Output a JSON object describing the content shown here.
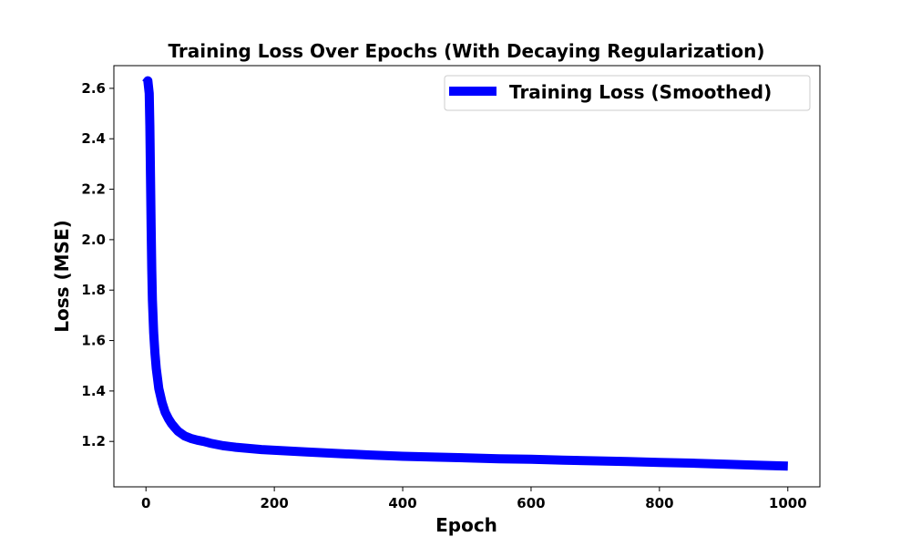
{
  "chart_data": {
    "type": "line",
    "title": "Training Loss Over Epochs (With Decaying Regularization)",
    "xlabel": "Epoch",
    "ylabel": "Loss (MSE)",
    "xlim": [
      -50,
      1050
    ],
    "ylim": [
      1.02,
      2.69
    ],
    "xticks": [
      0,
      200,
      400,
      600,
      800,
      1000
    ],
    "yticks": [
      1.2,
      1.4,
      1.6,
      1.8,
      2.0,
      2.2,
      2.4,
      2.6
    ],
    "grid": false,
    "legend_position": "top-right",
    "series": [
      {
        "name": "Training Loss (Smoothed)",
        "color": "#0000ff",
        "x": [
          0,
          3,
          5,
          6,
          7,
          8,
          9,
          10,
          12,
          14,
          16,
          18,
          20,
          25,
          30,
          35,
          40,
          45,
          50,
          60,
          70,
          80,
          90,
          100,
          110,
          120,
          140,
          160,
          180,
          200,
          250,
          300,
          350,
          400,
          450,
          500,
          550,
          600,
          650,
          700,
          750,
          800,
          850,
          900,
          950,
          1000
        ],
        "y": [
          2.62,
          2.63,
          2.58,
          2.45,
          2.25,
          2.05,
          1.88,
          1.76,
          1.63,
          1.55,
          1.49,
          1.45,
          1.41,
          1.355,
          1.315,
          1.29,
          1.27,
          1.255,
          1.24,
          1.222,
          1.212,
          1.205,
          1.2,
          1.193,
          1.188,
          1.183,
          1.177,
          1.172,
          1.168,
          1.165,
          1.158,
          1.152,
          1.146,
          1.141,
          1.138,
          1.135,
          1.131,
          1.129,
          1.126,
          1.123,
          1.12,
          1.117,
          1.114,
          1.11,
          1.106,
          1.102
        ]
      }
    ]
  }
}
